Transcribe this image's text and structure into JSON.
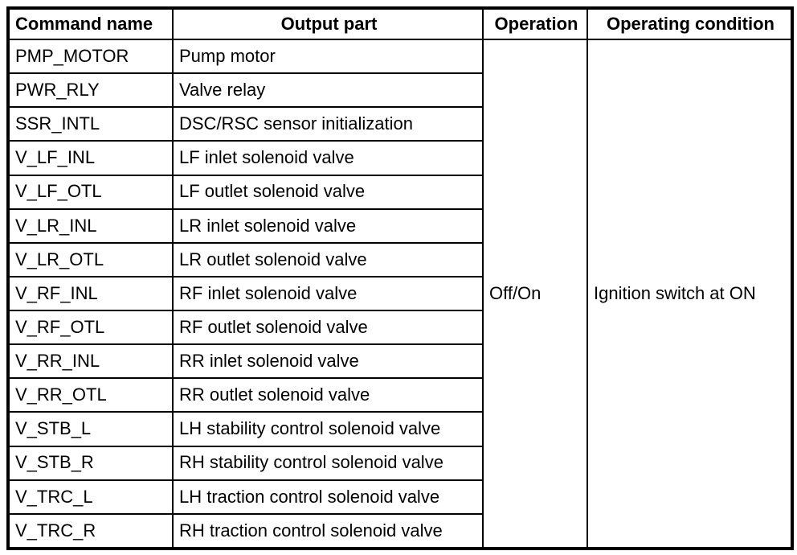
{
  "table": {
    "headers": {
      "command_name": "Command name",
      "output_part": "Output part",
      "operation": "Operation",
      "operating_condition": "Operating condition"
    },
    "rows": [
      {
        "command": "PMP_MOTOR",
        "output": "Pump motor"
      },
      {
        "command": "PWR_RLY",
        "output": "Valve relay"
      },
      {
        "command": "SSR_INTL",
        "output": "DSC/RSC sensor initialization"
      },
      {
        "command": "V_LF_INL",
        "output": "LF inlet solenoid valve"
      },
      {
        "command": "V_LF_OTL",
        "output": "LF outlet solenoid valve"
      },
      {
        "command": "V_LR_INL",
        "output": "LR inlet solenoid valve"
      },
      {
        "command": "V_LR_OTL",
        "output": "LR outlet solenoid valve"
      },
      {
        "command": "V_RF_INL",
        "output": "RF inlet solenoid valve"
      },
      {
        "command": "V_RF_OTL",
        "output": "RF outlet solenoid valve"
      },
      {
        "command": "V_RR_INL",
        "output": "RR inlet solenoid valve"
      },
      {
        "command": "V_RR_OTL",
        "output": "RR outlet solenoid valve"
      },
      {
        "command": "V_STB_L",
        "output": "LH stability control solenoid valve"
      },
      {
        "command": "V_STB_R",
        "output": "RH stability control solenoid valve"
      },
      {
        "command": "V_TRC_L",
        "output": "LH traction control solenoid valve"
      },
      {
        "command": "V_TRC_R",
        "output": "RH traction control solenoid valve"
      }
    ],
    "operation_value": "Off/On",
    "operating_condition_value": "Ignition switch at ON"
  },
  "colors": {
    "border": "#000000",
    "text": "#000000",
    "background": "#ffffff"
  }
}
